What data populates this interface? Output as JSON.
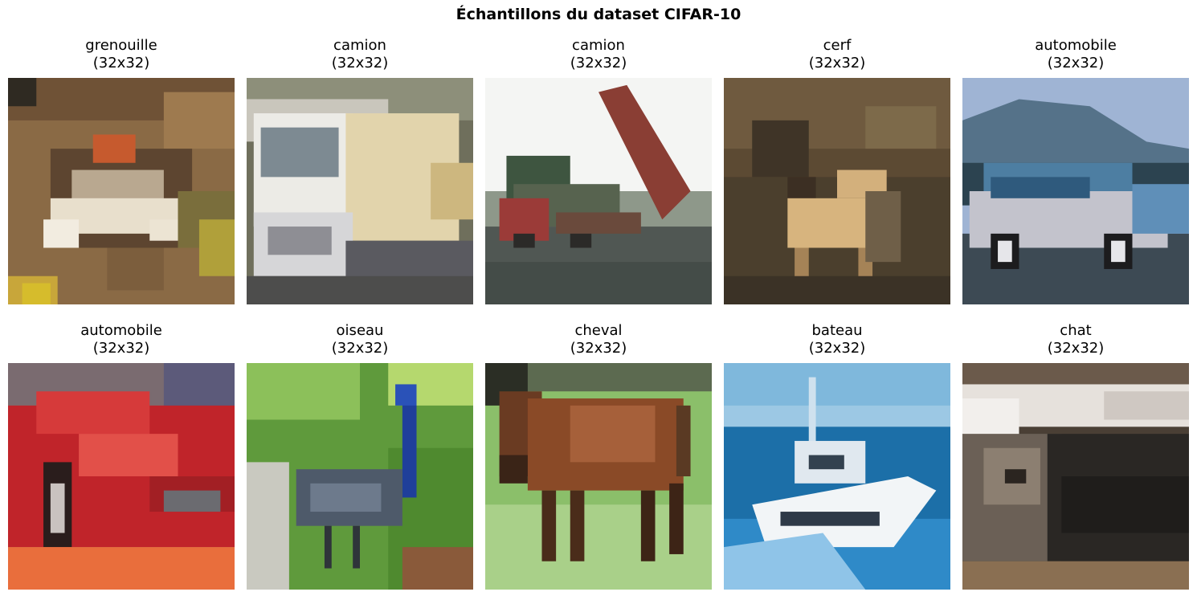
{
  "figure": {
    "suptitle": "Échantillons du dataset CIFAR-10"
  },
  "samples": [
    {
      "label": "grenouille",
      "size": "(32x32)",
      "scene": "frog"
    },
    {
      "label": "camion",
      "size": "(32x32)",
      "scene": "truck-white"
    },
    {
      "label": "camion",
      "size": "(32x32)",
      "scene": "truck-dump"
    },
    {
      "label": "cerf",
      "size": "(32x32)",
      "scene": "deer"
    },
    {
      "label": "automobile",
      "size": "(32x32)",
      "scene": "car-silver"
    },
    {
      "label": "automobile",
      "size": "(32x32)",
      "scene": "car-red"
    },
    {
      "label": "oiseau",
      "size": "(32x32)",
      "scene": "bird"
    },
    {
      "label": "cheval",
      "size": "(32x32)",
      "scene": "horse"
    },
    {
      "label": "bateau",
      "size": "(32x32)",
      "scene": "boat"
    },
    {
      "label": "chat",
      "size": "(32x32)",
      "scene": "cat"
    }
  ]
}
